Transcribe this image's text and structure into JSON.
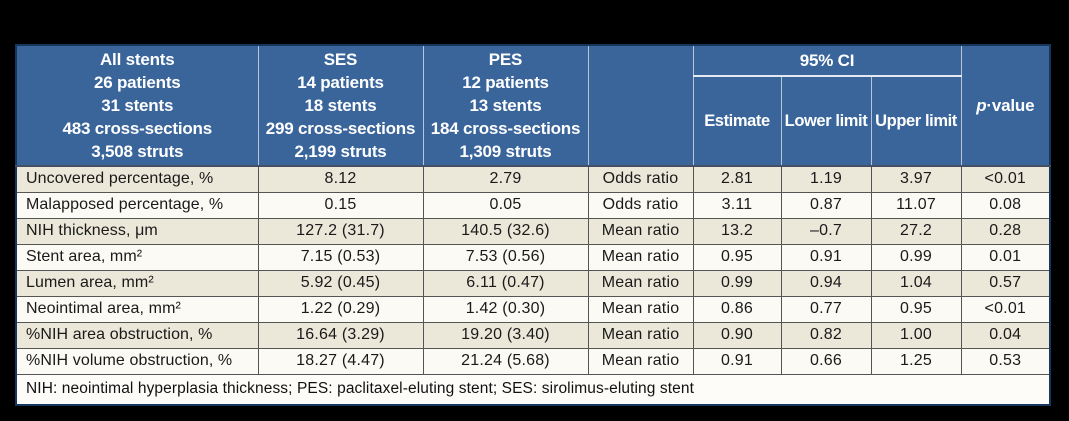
{
  "table": {
    "header": {
      "all_stents": "All stents\n26 patients\n31 stents\n483 cross-sections\n3,508 struts",
      "ses": "SES\n14 patients\n18 stents\n299 cross-sections\n2,199 struts",
      "pes": "PES\n12 patients\n13 stents\n184 cross-sections\n1,309 struts",
      "ratio_type_blank": "",
      "ci_group": "95% CI",
      "estimate": "Estimate",
      "lower_limit": "Lower limit",
      "upper_limit": "Upper limit",
      "p_italic": "p",
      "p_rest": "·value"
    },
    "rows": [
      {
        "label": "Uncovered percentage, %",
        "ses": "8.12",
        "pes": "2.79",
        "ratio": "Odds ratio",
        "estimate": "2.81",
        "lower": "1.19",
        "upper": "3.97",
        "p": "<0.01"
      },
      {
        "label": "Malapposed percentage, %",
        "ses": "0.15",
        "pes": "0.05",
        "ratio": "Odds ratio",
        "estimate": "3.11",
        "lower": "0.87",
        "upper": "11.07",
        "p": "0.08"
      },
      {
        "label": "NIH thickness, μm",
        "ses": "127.2 (31.7)",
        "pes": "140.5 (32.6)",
        "ratio": "Mean ratio",
        "estimate": "13.2",
        "lower": "–0.7",
        "upper": "27.2",
        "p": "0.28"
      },
      {
        "label": "Stent area, mm²",
        "ses": "7.15 (0.53)",
        "pes": "7.53 (0.56)",
        "ratio": "Mean ratio",
        "estimate": "0.95",
        "lower": "0.91",
        "upper": "0.99",
        "p": "0.01"
      },
      {
        "label": "Lumen area, mm²",
        "ses": "5.92 (0.45)",
        "pes": "6.11 (0.47)",
        "ratio": "Mean ratio",
        "estimate": "0.99",
        "lower": "0.94",
        "upper": "1.04",
        "p": "0.57"
      },
      {
        "label": "Neointimal area, mm²",
        "ses": "1.22 (0.29)",
        "pes": "1.42 (0.30)",
        "ratio": "Mean ratio",
        "estimate": "0.86",
        "lower": "0.77",
        "upper": "0.95",
        "p": "<0.01"
      },
      {
        "label": "%NIH area obstruction, %",
        "ses": "16.64 (3.29)",
        "pes": "19.20 (3.40)",
        "ratio": "Mean ratio",
        "estimate": "0.90",
        "lower": "0.82",
        "upper": "1.00",
        "p": "0.04"
      },
      {
        "label": "%NIH volume obstruction, %",
        "ses": "18.27 (4.47)",
        "pes": "21.24 (5.68)",
        "ratio": "Mean ratio",
        "estimate": "0.91",
        "lower": "0.66",
        "upper": "1.25",
        "p": "0.53"
      }
    ],
    "footnote": "NIH: neointimal hyperplasia thickness; PES: paclitaxel-eluting stent; SES: sirolimus-eluting stent"
  },
  "colors": {
    "header_blue": "#3A659B",
    "outer_border_navy": "#17365D",
    "row_shaded_beige": "#EBE7D9",
    "row_plain_white": "#FBFAF5",
    "grid_line": "#555555",
    "background": "#000000"
  }
}
